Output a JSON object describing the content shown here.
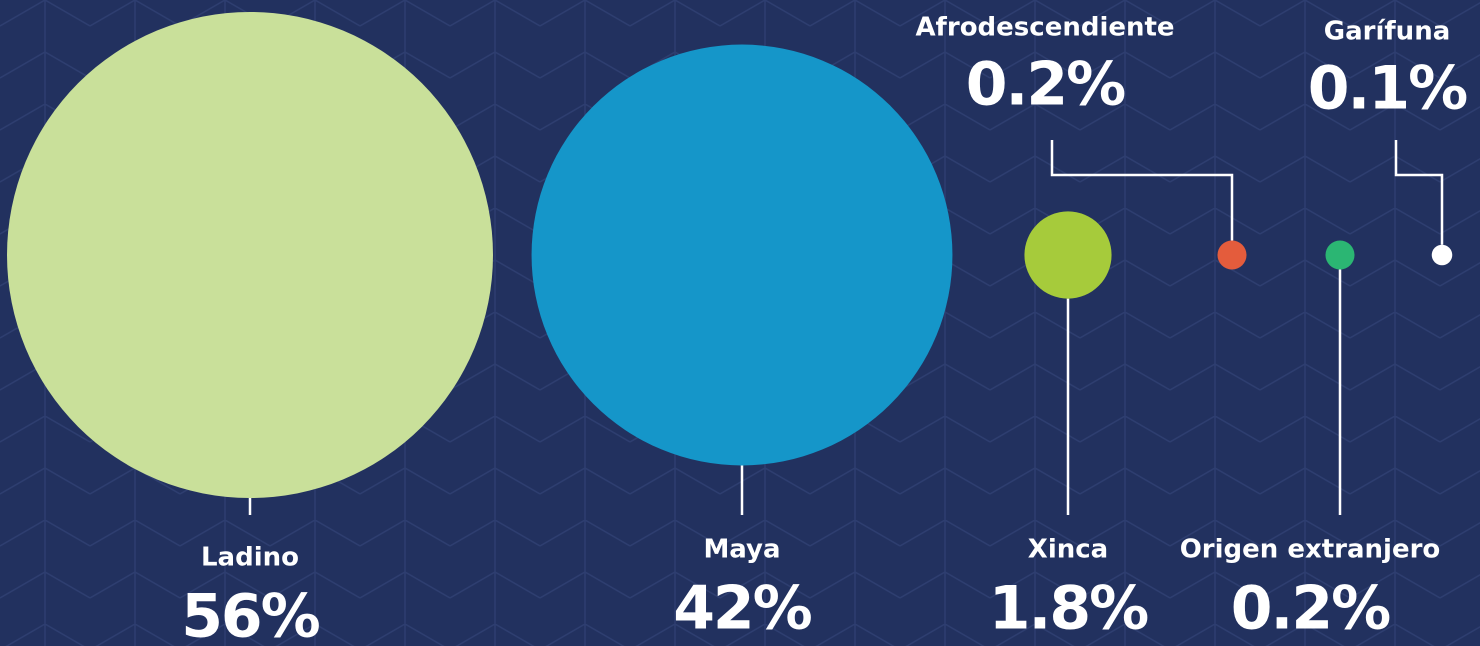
{
  "chart_data": {
    "type": "bubble",
    "categories": [
      "Ladino",
      "Maya",
      "Xinca",
      "Afrodescendiente",
      "Origen extranjero",
      "Garífuna"
    ],
    "values": [
      56,
      42,
      1.8,
      0.2,
      0.2,
      0.1
    ],
    "value_labels": [
      "56%",
      "42%",
      "1.8%",
      "0.2%",
      "0.2%",
      "0.1%"
    ],
    "colors": [
      "#c9e09a",
      "#1596c9",
      "#a6cb3b",
      "#e45c3c",
      "#2bb673",
      "#ffffff"
    ]
  }
}
